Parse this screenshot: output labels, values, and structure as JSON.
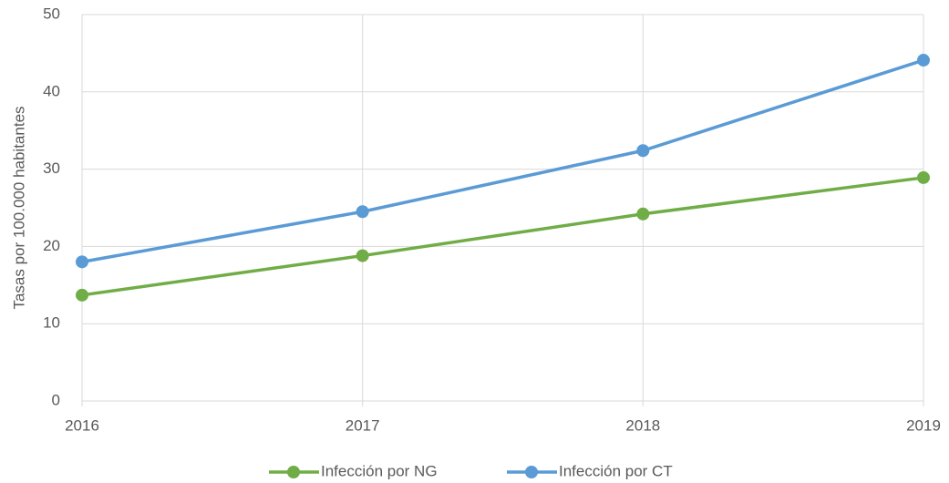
{
  "chart_data": {
    "type": "line",
    "y_label": "Tasas por 100.000 habitantes",
    "x": [
      2016,
      2017,
      2018,
      2019
    ],
    "xlim": [
      2016,
      2019
    ],
    "xticks": [
      2016,
      2017,
      2018,
      2019
    ],
    "ylim": [
      0,
      50
    ],
    "yticks": [
      0,
      10,
      20,
      30,
      40,
      50
    ],
    "grid": true,
    "legend": "bottom",
    "series": [
      {
        "name": "Infección por NG",
        "color": "#70ad47",
        "values": [
          13.7,
          18.8,
          24.2,
          28.9
        ]
      },
      {
        "name": "Infección por CT",
        "color": "#5b9bd5",
        "values": [
          18.0,
          24.5,
          32.4,
          44.1
        ]
      }
    ]
  }
}
